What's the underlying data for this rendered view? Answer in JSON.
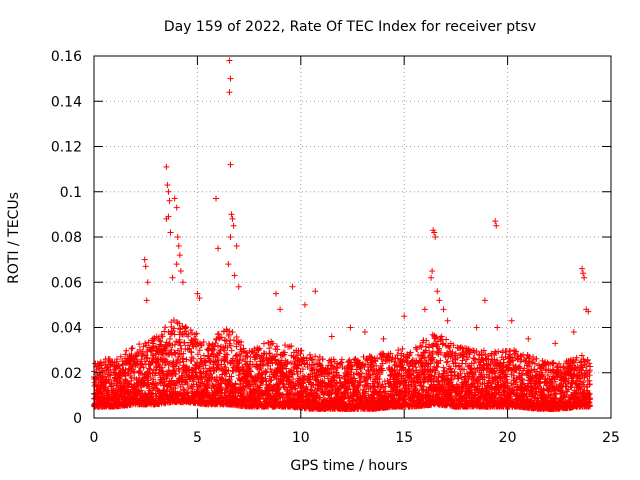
{
  "chart_data": {
    "type": "scatter",
    "title": "Day 159 of 2022, Rate Of TEC Index for receiver ptsv",
    "xlabel": "GPS time / hours",
    "ylabel": "ROTI / TECUs",
    "xlim": [
      0,
      25
    ],
    "ylim": [
      0,
      0.16
    ],
    "xticks": [
      "0",
      "5",
      "10",
      "15",
      "20",
      "25"
    ],
    "yticks": [
      "0",
      "0.02",
      "0.04",
      "0.06",
      "0.08",
      "0.1",
      "0.12",
      "0.14",
      "0.16"
    ],
    "grid": true,
    "legend": "none",
    "marker": "+",
    "series_color": "#ff0000",
    "points": [
      [
        3.5,
        0.111
      ],
      [
        3.55,
        0.103
      ],
      [
        3.6,
        0.1
      ],
      [
        3.65,
        0.096
      ],
      [
        3.5,
        0.088
      ],
      [
        3.6,
        0.089
      ],
      [
        3.7,
        0.082
      ],
      [
        3.9,
        0.097
      ],
      [
        4.0,
        0.093
      ],
      [
        4.05,
        0.08
      ],
      [
        4.1,
        0.076
      ],
      [
        4.15,
        0.072
      ],
      [
        4.0,
        0.068
      ],
      [
        4.2,
        0.065
      ],
      [
        3.8,
        0.062
      ],
      [
        4.3,
        0.06
      ],
      [
        5.9,
        0.097
      ],
      [
        6.0,
        0.075
      ],
      [
        6.55,
        0.158
      ],
      [
        6.6,
        0.15
      ],
      [
        6.55,
        0.144
      ],
      [
        6.6,
        0.112
      ],
      [
        6.65,
        0.09
      ],
      [
        6.7,
        0.088
      ],
      [
        6.75,
        0.085
      ],
      [
        6.6,
        0.08
      ],
      [
        6.9,
        0.076
      ],
      [
        6.5,
        0.068
      ],
      [
        6.8,
        0.063
      ],
      [
        7.0,
        0.058
      ],
      [
        2.45,
        0.07
      ],
      [
        2.5,
        0.067
      ],
      [
        2.6,
        0.06
      ],
      [
        2.55,
        0.052
      ],
      [
        5.0,
        0.055
      ],
      [
        5.1,
        0.053
      ],
      [
        8.8,
        0.055
      ],
      [
        9.6,
        0.058
      ],
      [
        10.7,
        0.056
      ],
      [
        10.2,
        0.05
      ],
      [
        9.0,
        0.048
      ],
      [
        11.5,
        0.036
      ],
      [
        12.4,
        0.04
      ],
      [
        13.1,
        0.038
      ],
      [
        14.0,
        0.035
      ],
      [
        15.0,
        0.045
      ],
      [
        16.0,
        0.048
      ],
      [
        16.4,
        0.083
      ],
      [
        16.45,
        0.082
      ],
      [
        16.5,
        0.08
      ],
      [
        16.35,
        0.065
      ],
      [
        16.3,
        0.062
      ],
      [
        16.6,
        0.056
      ],
      [
        16.7,
        0.052
      ],
      [
        16.9,
        0.048
      ],
      [
        17.1,
        0.043
      ],
      [
        18.5,
        0.04
      ],
      [
        18.9,
        0.052
      ],
      [
        19.4,
        0.087
      ],
      [
        19.45,
        0.085
      ],
      [
        19.5,
        0.04
      ],
      [
        20.2,
        0.043
      ],
      [
        21.0,
        0.035
      ],
      [
        22.3,
        0.033
      ],
      [
        23.2,
        0.038
      ],
      [
        23.6,
        0.066
      ],
      [
        23.65,
        0.064
      ],
      [
        23.7,
        0.062
      ],
      [
        23.8,
        0.048
      ],
      [
        23.9,
        0.047
      ]
    ],
    "dense_band": [
      [
        0.0,
        0.009,
        0.024
      ],
      [
        1.0,
        0.009,
        0.028
      ],
      [
        2.0,
        0.01,
        0.032
      ],
      [
        3.0,
        0.01,
        0.036
      ],
      [
        3.8,
        0.011,
        0.045
      ],
      [
        4.5,
        0.011,
        0.04
      ],
      [
        5.5,
        0.01,
        0.035
      ],
      [
        6.5,
        0.01,
        0.04
      ],
      [
        7.5,
        0.009,
        0.03
      ],
      [
        8.5,
        0.009,
        0.034
      ],
      [
        9.5,
        0.009,
        0.032
      ],
      [
        10.5,
        0.008,
        0.028
      ],
      [
        11.5,
        0.008,
        0.026
      ],
      [
        12.5,
        0.008,
        0.026
      ],
      [
        13.5,
        0.008,
        0.028
      ],
      [
        14.5,
        0.009,
        0.03
      ],
      [
        15.5,
        0.009,
        0.032
      ],
      [
        16.5,
        0.01,
        0.038
      ],
      [
        17.5,
        0.009,
        0.032
      ],
      [
        18.5,
        0.009,
        0.03
      ],
      [
        19.5,
        0.009,
        0.03
      ],
      [
        20.5,
        0.009,
        0.03
      ],
      [
        21.5,
        0.008,
        0.026
      ],
      [
        22.5,
        0.008,
        0.024
      ],
      [
        23.5,
        0.009,
        0.028
      ],
      [
        24.0,
        0.009,
        0.026
      ]
    ]
  }
}
